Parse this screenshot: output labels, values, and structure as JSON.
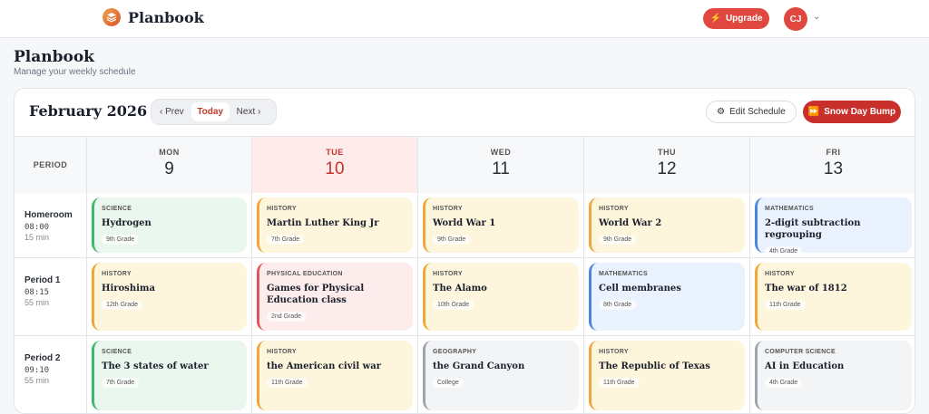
{
  "app": {
    "name": "Planbook",
    "upgrade_label": "Upgrade",
    "user_initials": "CJ"
  },
  "page": {
    "title": "Planbook",
    "subtitle": "Manage your weekly schedule"
  },
  "calendar": {
    "month": "February 2026",
    "nav": {
      "prev": "‹ Prev",
      "today": "Today",
      "next": "Next ›"
    },
    "edit_label": "Edit Schedule",
    "snow_label": "Snow Day Bump",
    "period_header": "PERIOD",
    "days": [
      {
        "name": "MON",
        "num": "9"
      },
      {
        "name": "TUE",
        "num": "10"
      },
      {
        "name": "WED",
        "num": "11"
      },
      {
        "name": "THU",
        "num": "12"
      },
      {
        "name": "FRI",
        "num": "13"
      }
    ],
    "periods": [
      {
        "name": "Homeroom",
        "time": "08:00",
        "dur": "15 min",
        "lessons": [
          {
            "subject": "SCIENCE",
            "title": "Hydrogen",
            "grade": "9th Grade"
          },
          {
            "subject": "HISTORY",
            "title": "Martin Luther King Jr",
            "grade": "7th Grade"
          },
          {
            "subject": "HISTORY",
            "title": "World War 1",
            "grade": "9th Grade"
          },
          {
            "subject": "HISTORY",
            "title": "World War 2",
            "grade": "9th Grade"
          },
          {
            "subject": "MATHEMATICS",
            "title": "2-digit subtraction regrouping",
            "grade": "4th Grade"
          }
        ]
      },
      {
        "name": "Period 1",
        "time": "08:15",
        "dur": "55 min",
        "lessons": [
          {
            "subject": "HISTORY",
            "title": "Hiroshima",
            "grade": "12th Grade"
          },
          {
            "subject": "PHYSICAL EDUCATION",
            "title": "Games for Physical Education class",
            "grade": "2nd Grade"
          },
          {
            "subject": "HISTORY",
            "title": "The Alamo",
            "grade": "10th Grade"
          },
          {
            "subject": "MATHEMATICS",
            "title": "Cell membranes",
            "grade": "8th Grade"
          },
          {
            "subject": "HISTORY",
            "title": "The war of 1812",
            "grade": "11th Grade"
          }
        ]
      },
      {
        "name": "Period 2",
        "time": "09:10",
        "dur": "55 min",
        "lessons": [
          {
            "subject": "SCIENCE",
            "title": "The 3 states of water",
            "grade": "7th Grade"
          },
          {
            "subject": "HISTORY",
            "title": "the American civil war",
            "grade": "11th Grade"
          },
          {
            "subject": "GEOGRAPHY",
            "title": "the Grand Canyon",
            "grade": "College"
          },
          {
            "subject": "HISTORY",
            "title": "The Republic of Texas",
            "grade": "11th Grade"
          },
          {
            "subject": "COMPUTER SCIENCE",
            "title": "AI in Education",
            "grade": "4th Grade"
          }
        ]
      }
    ]
  },
  "colors": {
    "SCIENCE": {
      "bg": "#eaf7ee",
      "border": "#3fb86a"
    },
    "HISTORY": {
      "bg": "#fdf6dd",
      "border": "#f0a63a"
    },
    "MATHEMATICS": {
      "bg": "#eaf2fd",
      "border": "#4a86e0"
    },
    "PHYSICAL EDUCATION": {
      "bg": "#fdecec",
      "border": "#e0575b"
    },
    "GEOGRAPHY": {
      "bg": "#f3f4f6",
      "border": "#a0a5ad"
    },
    "COMPUTER SCIENCE": {
      "bg": "#f3f4f6",
      "border": "#a0a5ad"
    }
  }
}
